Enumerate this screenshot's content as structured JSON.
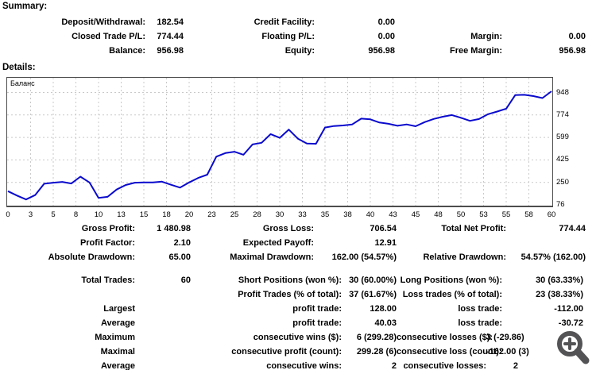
{
  "summary": {
    "heading": "Summary:",
    "rows": [
      [
        "Deposit/Withdrawal:",
        "182.54",
        "Credit Facility:",
        "0.00",
        "",
        ""
      ],
      [
        "Closed Trade P/L:",
        "774.44",
        "Floating P/L:",
        "0.00",
        "Margin:",
        "0.00"
      ],
      [
        "Balance:",
        "956.98",
        "Equity:",
        "956.98",
        "Free Margin:",
        "956.98"
      ]
    ]
  },
  "details": {
    "heading": "Details:"
  },
  "chart_data": {
    "type": "line",
    "title": "Баланс",
    "xlabel": "",
    "ylabel": "",
    "xlim": [
      0,
      60
    ],
    "ylim": [
      76,
      948
    ],
    "grid": "dashed",
    "legend_position": "top-left",
    "xticks": [
      "0",
      "3",
      "5",
      "8",
      "10",
      "13",
      "15",
      "18",
      "20",
      "23",
      "25",
      "28",
      "30",
      "33",
      "35",
      "38",
      "40",
      "43",
      "45",
      "48",
      "50",
      "53",
      "55",
      "58",
      "60"
    ],
    "yticks": [
      948,
      774,
      599,
      425,
      250,
      76
    ],
    "series": [
      {
        "name": "Баланс",
        "values": [
          182,
          148,
          118,
          152,
          240,
          248,
          254,
          242,
          295,
          250,
          130,
          138,
          195,
          230,
          248,
          250,
          250,
          256,
          232,
          210,
          250,
          285,
          310,
          450,
          478,
          488,
          465,
          545,
          558,
          625,
          596,
          660,
          590,
          552,
          550,
          676,
          688,
          692,
          700,
          745,
          740,
          715,
          705,
          690,
          700,
          686,
          718,
          743,
          760,
          773,
          752,
          728,
          742,
          780,
          800,
          822,
          928,
          930,
          920,
          905,
          957
        ]
      }
    ]
  },
  "stats": {
    "section1": [
      [
        "Gross Profit:",
        "1 480.98",
        "Gross Loss:",
        "706.54",
        "Total Net Profit:",
        "774.44"
      ],
      [
        "Profit Factor:",
        "2.10",
        "Expected Payoff:",
        "12.91",
        "",
        ""
      ],
      [
        "Absolute Drawdown:",
        "65.00",
        "Maximal Drawdown:",
        "162.00 (54.57%)",
        "Relative Drawdown:",
        "54.57% (162.00)"
      ]
    ],
    "section2": [
      [
        "Total Trades:",
        "60",
        "Short Positions (won %):",
        "30 (60.00%)",
        "Long Positions (won %):",
        "30 (63.33%)"
      ],
      [
        "",
        "",
        "Profit Trades (% of total):",
        "37 (61.67%)",
        "Loss trades (% of total):",
        "23 (38.33%)"
      ],
      [
        "Largest",
        "",
        "profit trade:",
        "128.00",
        "loss trade:",
        "-112.00"
      ],
      [
        "Average",
        "",
        "profit trade:",
        "40.03",
        "loss trade:",
        "-30.72"
      ]
    ],
    "section3": [
      [
        "Maximum",
        "",
        "consecutive wins ($):",
        "6 (299.28)",
        "consecutive losses ($):",
        "3 (-29.86)"
      ],
      [
        "Maximal",
        "",
        "consecutive profit (count):",
        "299.28 (6)",
        "consecutive loss (count):",
        "-162.00 (3)"
      ],
      [
        "Average",
        "",
        "consecutive wins:",
        "2",
        "consecutive losses:",
        "2"
      ]
    ]
  },
  "colors": {
    "line": "#0a0acd",
    "grid": "#c9c9c9",
    "axis": "#4d4d4d",
    "text": "#000000",
    "magnifier": "#535355"
  }
}
